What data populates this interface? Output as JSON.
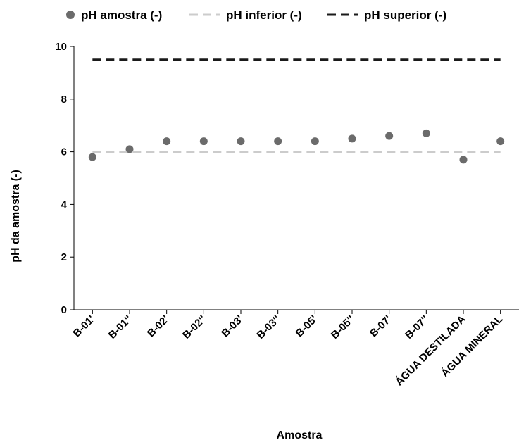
{
  "chart_data": {
    "type": "scatter",
    "categories": [
      "B-01'",
      "B-01''",
      "B-02'",
      "B-02''",
      "B-03'",
      "B-03''",
      "B-05'",
      "B-05''",
      "B-07'",
      "B-07''",
      "ÁGUA DESTILADA",
      "ÁGUA MINERAL"
    ],
    "series": [
      {
        "name": "pH amostra (-)",
        "kind": "points",
        "color": "#6b6b6b",
        "values": [
          5.8,
          6.1,
          6.4,
          6.4,
          6.4,
          6.4,
          6.4,
          6.5,
          6.6,
          6.7,
          5.7,
          6.4
        ]
      },
      {
        "name": "pH inferior (-)",
        "kind": "dashed-line",
        "color": "#cccccc",
        "values": [
          6,
          6,
          6,
          6,
          6,
          6,
          6,
          6,
          6,
          6,
          6,
          6
        ]
      },
      {
        "name": "pH superior (-)",
        "kind": "dashed-line",
        "color": "#1a1a1a",
        "values": [
          9.5,
          9.5,
          9.5,
          9.5,
          9.5,
          9.5,
          9.5,
          9.5,
          9.5,
          9.5,
          9.5,
          9.5
        ]
      }
    ],
    "title": "",
    "xlabel": "Amostra",
    "ylabel": "pH da amostra (-)",
    "ylim": [
      0,
      10
    ],
    "yticks": [
      "0",
      "2",
      "4",
      "6",
      "8",
      "10"
    ],
    "grid": false,
    "legend": "top"
  }
}
